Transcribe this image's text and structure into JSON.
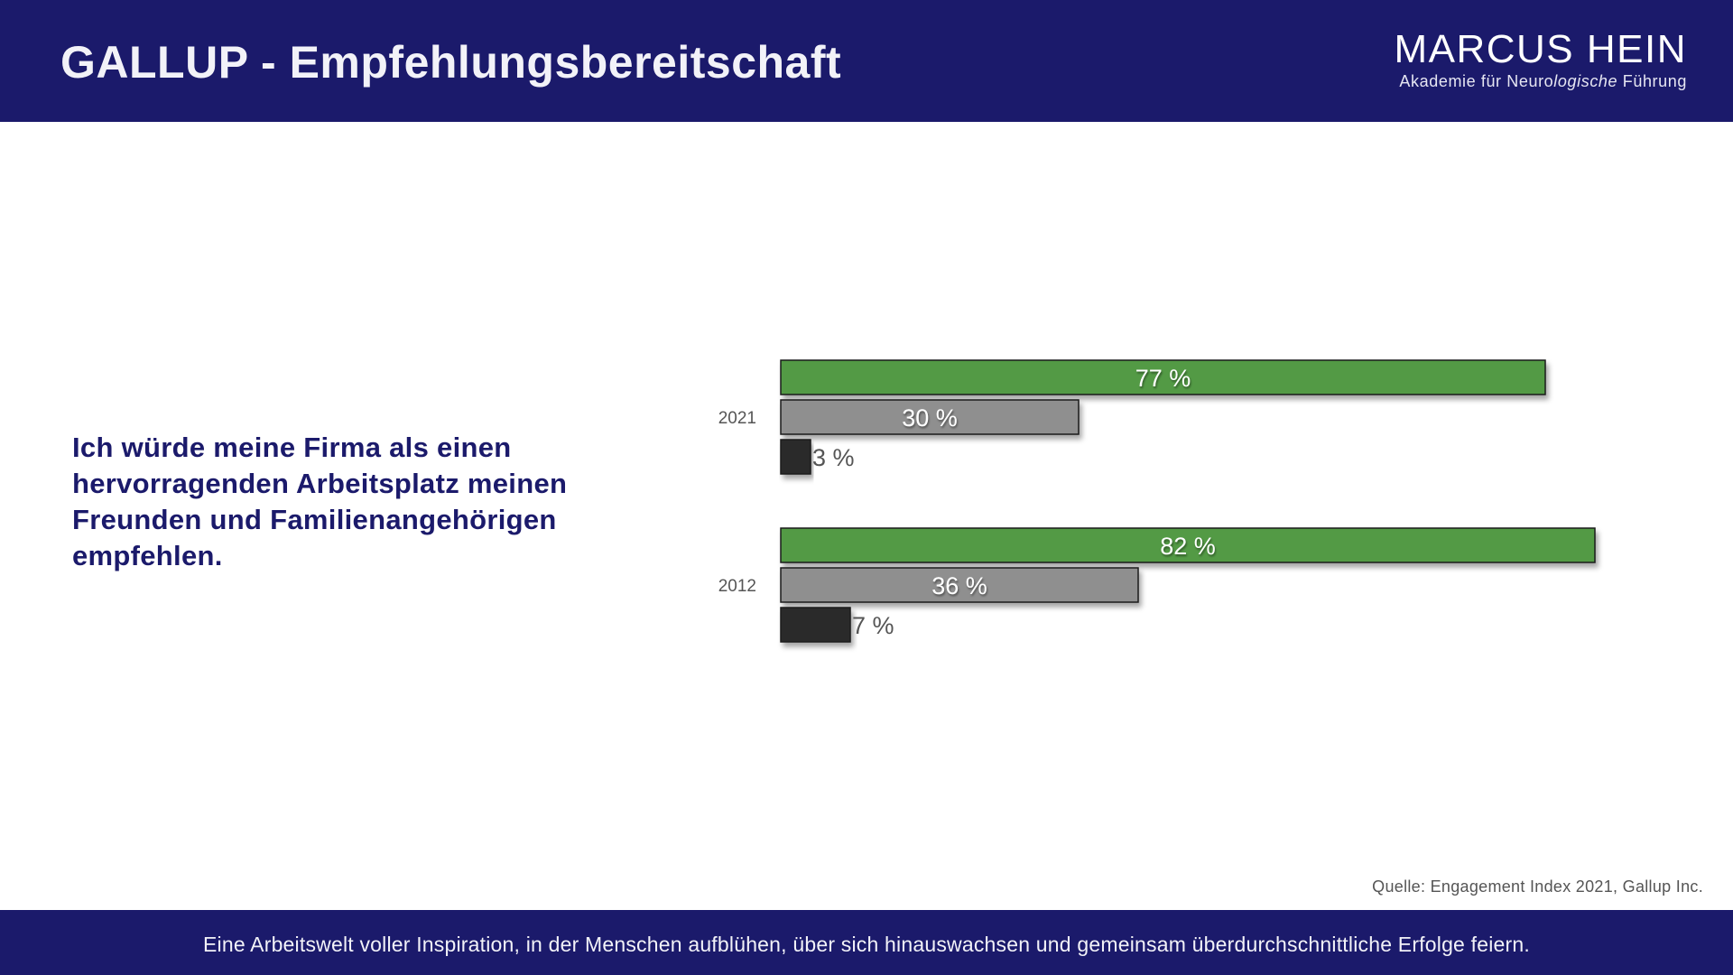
{
  "header": {
    "title": "GALLUP - Empfehlungsbereitschaft",
    "brand_name": "MARCUS HEIN",
    "brand_sub_prefix": "Akademie für Neuro",
    "brand_sub_italic": "logische",
    "brand_sub_suffix": " Führung"
  },
  "question": "Ich würde meine Firma als einen hervorragenden Arbeitsplatz meinen Freunden und Familienangehörigen empfehlen.",
  "source": "Quelle: Engagement Index 2021, Gallup Inc.",
  "footer": "Eine Arbeitswelt voller Inspiration, in der Menschen aufblühen, über sich hinauswachsen und gemeinsam überdurchschnittliche Erfolge feiern.",
  "colors": {
    "navy": "#1b1a6b",
    "green": "#529a45",
    "gray": "#8f8f8f",
    "dark": "#2a2a2a"
  },
  "chart_data": {
    "type": "bar",
    "orientation": "horizontal",
    "title": "",
    "xlabel": "",
    "ylabel": "",
    "xlim": [
      0,
      100
    ],
    "grid": false,
    "categories": [
      "2021",
      "2012"
    ],
    "series": [
      {
        "name": "green",
        "color": "#529a45",
        "values": [
          77,
          82
        ],
        "labels": [
          "77 %",
          "82 %"
        ]
      },
      {
        "name": "gray",
        "color": "#8f8f8f",
        "values": [
          30,
          36
        ],
        "labels": [
          "30 %",
          "36 %"
        ]
      },
      {
        "name": "dark",
        "color": "#2a2a2a",
        "values": [
          3,
          7
        ],
        "labels": [
          "3 %",
          "7 %"
        ]
      }
    ]
  }
}
